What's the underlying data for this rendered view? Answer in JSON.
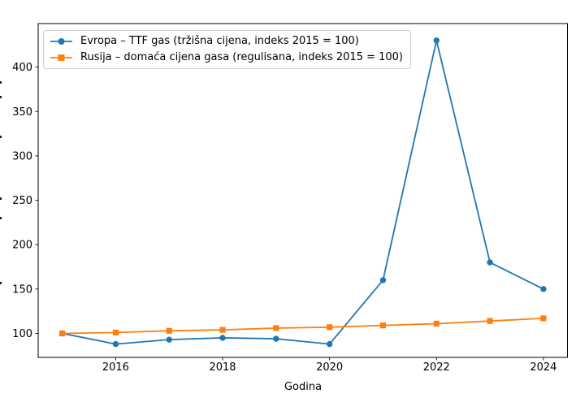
{
  "chart_data": {
    "type": "line",
    "title": "",
    "xlabel": "Godina",
    "ylabel": "",
    "x": [
      2015,
      2016,
      2017,
      2018,
      2019,
      2020,
      2021,
      2022,
      2023,
      2024
    ],
    "series": [
      {
        "name": "Evropa – TTF gas (tržišna cijena, indeks 2015 = 100)",
        "color": "#1f77b4",
        "marker": "circle",
        "values": [
          100,
          88,
          93,
          95,
          94,
          88,
          160,
          430,
          180,
          150
        ]
      },
      {
        "name": "Rusija – domaća cijena gasa (regulisana, indeks 2015 = 100)",
        "color": "#ff7f0e",
        "marker": "square",
        "values": [
          100,
          101,
          103,
          104,
          106,
          107,
          109,
          111,
          114,
          117
        ]
      }
    ],
    "x_ticks": [
      2016,
      2018,
      2020,
      2022,
      2024
    ],
    "y_ticks": [
      100,
      150,
      200,
      250,
      300,
      350,
      400
    ],
    "xlim": [
      2014.55,
      2024.45
    ],
    "ylim": [
      73,
      449
    ],
    "grid": false,
    "legend_position": "upper-left"
  },
  "axes": {
    "spine_color": "#000000",
    "tick_color": "#000000",
    "tick_label_color": "#000000"
  },
  "ylabel_fragments_y": [
    100,
    118,
    167,
    243,
    267,
    347
  ]
}
